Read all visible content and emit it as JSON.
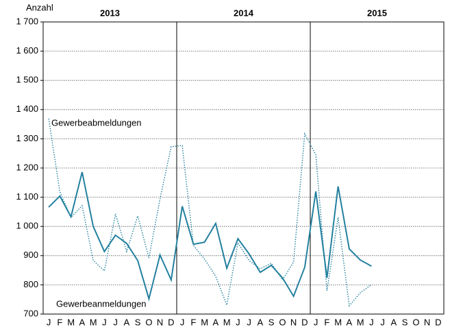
{
  "chart_data": {
    "type": "line",
    "y_label": "Anzahl",
    "years": [
      "2013",
      "2014",
      "2015"
    ],
    "categories": [
      "J",
      "F",
      "M",
      "A",
      "M",
      "J",
      "J",
      "A",
      "S",
      "O",
      "N",
      "D",
      "J",
      "F",
      "M",
      "A",
      "M",
      "J",
      "J",
      "A",
      "S",
      "O",
      "N",
      "D",
      "J",
      "F",
      "M",
      "A",
      "M",
      "J",
      "J",
      "A",
      "S",
      "O",
      "N",
      "D"
    ],
    "series": [
      {
        "name": "Gewerbeanmeldungen",
        "color": "#23809f",
        "dashed": false,
        "values": [
          1066,
          1104,
          1033,
          1186,
          1000,
          914,
          970,
          942,
          883,
          752,
          902,
          817,
          1069,
          939,
          946,
          1010,
          857,
          958,
          906,
          843,
          867,
          824,
          761,
          860,
          1120,
          824,
          1137,
          923,
          885,
          864,
          null,
          null,
          null,
          null,
          null,
          null
        ]
      },
      {
        "name": "Gewerbeabmeldungen",
        "color": "#23809f",
        "dashed": true,
        "values": [
          1369,
          1118,
          1031,
          1071,
          883,
          848,
          1043,
          914,
          1036,
          892,
          1094,
          1273,
          1277,
          935,
          888,
          829,
          731,
          944,
          883,
          855,
          874,
          817,
          878,
          1317,
          1245,
          780,
          1031,
          728,
          773,
          801,
          null,
          null,
          null,
          null,
          null,
          null
        ]
      }
    ],
    "ylim": [
      700,
      1700
    ],
    "yticks": [
      700,
      800,
      900,
      {
        "value": 1000,
        "label": "1 000"
      },
      {
        "value": 1100,
        "label": "1 100"
      },
      {
        "value": 1200,
        "label": "1 200"
      },
      {
        "value": 1300,
        "label": "1 300"
      },
      {
        "value": 1400,
        "label": "1 400"
      },
      {
        "value": 1500,
        "label": "1 500"
      },
      {
        "value": 1600,
        "label": "1 600"
      },
      {
        "value": 1700,
        "label": "1 700"
      }
    ],
    "grid": true
  }
}
